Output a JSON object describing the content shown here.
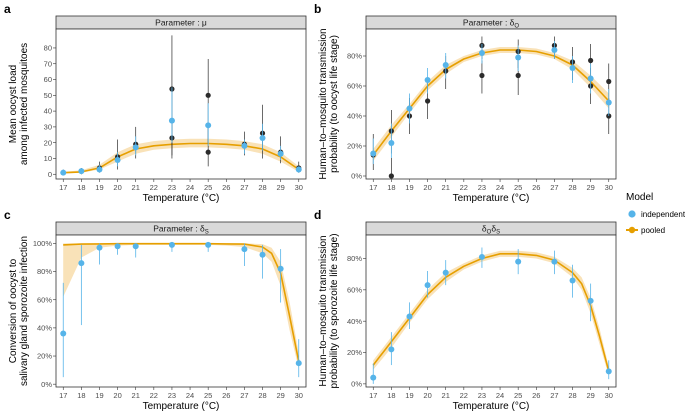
{
  "figure": {
    "legend": {
      "title": "Model",
      "items": [
        {
          "label": "independent",
          "color": "#56B4E9"
        },
        {
          "label": "pooled",
          "color": "#E69F00"
        }
      ]
    }
  },
  "colors": {
    "independent": "#56B4E9",
    "pooled": "#E69F00",
    "ribbon": "#F8DFB0",
    "raw": "#2b2b2b",
    "strip_bg": "#d9d9d9",
    "strip_border": "#333333"
  },
  "chart_data": [
    {
      "id": "a",
      "letter": "a",
      "type": "scatter",
      "strip": "Parameter : μ",
      "title": "Parameter : μ",
      "xlabel": "Temperature (°C)",
      "ylabel": [
        "Mean oocyst load",
        "among infected mosquitoes"
      ],
      "xlim": [
        16.6,
        30.4
      ],
      "ylim": [
        -3,
        92
      ],
      "xticks": [
        17,
        18,
        19,
        20,
        21,
        22,
        23,
        24,
        25,
        26,
        27,
        28,
        29,
        30
      ],
      "yticks": [
        0,
        10,
        20,
        30,
        40,
        50,
        60,
        70,
        80
      ],
      "ytick_labels": [
        "0",
        "10",
        "20",
        "30",
        "40",
        "50",
        "60",
        "70",
        "80"
      ],
      "curve": {
        "x": [
          17,
          18,
          19,
          20,
          21,
          22,
          23,
          24,
          25,
          26,
          27,
          28,
          29,
          30
        ],
        "y": [
          1,
          1.5,
          4,
          11,
          16,
          18,
          19,
          19.5,
          19.5,
          19,
          18,
          16,
          11,
          3
        ]
      },
      "ribbon": {
        "x": [
          17,
          18,
          19,
          20,
          21,
          22,
          23,
          24,
          25,
          26,
          27,
          28,
          29,
          30
        ],
        "lower": [
          0.5,
          1,
          3,
          8,
          13,
          15.5,
          16.5,
          17,
          17,
          16.5,
          15.5,
          13,
          8,
          1.5
        ],
        "upper": [
          1.5,
          2.5,
          6,
          14,
          19,
          21,
          22,
          22.5,
          22.5,
          22,
          21,
          19,
          14,
          5
        ]
      },
      "independent": [
        {
          "x": 17,
          "y": 1,
          "lo": 0,
          "hi": 2
        },
        {
          "x": 18,
          "y": 2,
          "lo": 1,
          "hi": 3
        },
        {
          "x": 19,
          "y": 3,
          "lo": 1,
          "hi": 6
        },
        {
          "x": 20,
          "y": 9,
          "lo": 5,
          "hi": 14
        },
        {
          "x": 21,
          "y": 17,
          "lo": 12,
          "hi": 24
        },
        {
          "x": 23,
          "y": 34,
          "lo": 20,
          "hi": 55
        },
        {
          "x": 25,
          "y": 31,
          "lo": 18,
          "hi": 45
        },
        {
          "x": 27,
          "y": 18,
          "lo": 13,
          "hi": 22
        },
        {
          "x": 28,
          "y": 23,
          "lo": 15,
          "hi": 32
        },
        {
          "x": 29,
          "y": 13,
          "lo": 9,
          "hi": 18
        },
        {
          "x": 30,
          "y": 3,
          "lo": 1,
          "hi": 5
        }
      ],
      "raw": [
        {
          "x": 17,
          "y": 1,
          "lo": 0,
          "hi": 3
        },
        {
          "x": 18,
          "y": 2,
          "lo": 0,
          "hi": 4
        },
        {
          "x": 19,
          "y": 4,
          "lo": 1,
          "hi": 8
        },
        {
          "x": 20,
          "y": 11,
          "lo": 3,
          "hi": 22
        },
        {
          "x": 21,
          "y": 19,
          "lo": 10,
          "hi": 30
        },
        {
          "x": 23,
          "y": 54,
          "lo": 12,
          "hi": 88
        },
        {
          "x": 23,
          "y": 23,
          "lo": 10,
          "hi": 35
        },
        {
          "x": 25,
          "y": 50,
          "lo": 20,
          "hi": 73
        },
        {
          "x": 25,
          "y": 14,
          "lo": 5,
          "hi": 30
        },
        {
          "x": 27,
          "y": 19,
          "lo": 12,
          "hi": 27
        },
        {
          "x": 28,
          "y": 26,
          "lo": 10,
          "hi": 44
        },
        {
          "x": 29,
          "y": 14,
          "lo": 7,
          "hi": 24
        },
        {
          "x": 30,
          "y": 4,
          "lo": 1,
          "hi": 8
        }
      ]
    },
    {
      "id": "b",
      "letter": "b",
      "type": "scatter",
      "strip": "Parameter : δ",
      "strip_sub": "O",
      "title": "Parameter : δO",
      "xlabel": "Temperature (°C)",
      "ylabel": [
        "Human–to–mosquito transmission",
        "probability (to oocyst life stage)"
      ],
      "xlim": [
        16.6,
        30.4
      ],
      "ylim": [
        -0.02,
        0.98
      ],
      "xticks": [
        17,
        18,
        19,
        20,
        21,
        22,
        23,
        24,
        25,
        26,
        27,
        28,
        29,
        30
      ],
      "yticks": [
        0,
        0.2,
        0.4,
        0.6,
        0.8
      ],
      "ytick_labels": [
        "0%",
        "20%",
        "40%",
        "60%",
        "80%"
      ],
      "curve": {
        "x": [
          17,
          18,
          19,
          20,
          21,
          22,
          23,
          24,
          25,
          26,
          27,
          28,
          29,
          30
        ],
        "y": [
          0.14,
          0.3,
          0.45,
          0.6,
          0.71,
          0.78,
          0.82,
          0.84,
          0.84,
          0.83,
          0.8,
          0.74,
          0.63,
          0.5
        ]
      },
      "ribbon": {
        "x": [
          17,
          18,
          19,
          20,
          21,
          22,
          23,
          24,
          25,
          26,
          27,
          28,
          29,
          30
        ],
        "lower": [
          0.1,
          0.26,
          0.42,
          0.57,
          0.68,
          0.76,
          0.8,
          0.82,
          0.82,
          0.81,
          0.78,
          0.71,
          0.59,
          0.45
        ],
        "upper": [
          0.18,
          0.34,
          0.48,
          0.63,
          0.74,
          0.8,
          0.84,
          0.86,
          0.86,
          0.85,
          0.82,
          0.77,
          0.67,
          0.55
        ]
      },
      "independent": [
        {
          "x": 17,
          "y": 0.15,
          "lo": 0.08,
          "hi": 0.25
        },
        {
          "x": 18,
          "y": 0.22,
          "lo": 0.12,
          "hi": 0.35
        },
        {
          "x": 19,
          "y": 0.45,
          "lo": 0.35,
          "hi": 0.55
        },
        {
          "x": 20,
          "y": 0.64,
          "lo": 0.55,
          "hi": 0.72
        },
        {
          "x": 21,
          "y": 0.74,
          "lo": 0.65,
          "hi": 0.82
        },
        {
          "x": 23,
          "y": 0.82,
          "lo": 0.75,
          "hi": 0.88
        },
        {
          "x": 25,
          "y": 0.79,
          "lo": 0.7,
          "hi": 0.87
        },
        {
          "x": 27,
          "y": 0.84,
          "lo": 0.78,
          "hi": 0.9
        },
        {
          "x": 28,
          "y": 0.72,
          "lo": 0.62,
          "hi": 0.8
        },
        {
          "x": 29,
          "y": 0.65,
          "lo": 0.55,
          "hi": 0.75
        },
        {
          "x": 30,
          "y": 0.49,
          "lo": 0.4,
          "hi": 0.58
        }
      ],
      "raw": [
        {
          "x": 17,
          "y": 0.14,
          "lo": 0.04,
          "hi": 0.28
        },
        {
          "x": 18,
          "y": 0.3,
          "lo": 0.15,
          "hi": 0.44
        },
        {
          "x": 18,
          "y": 0.0,
          "lo": 0.0,
          "hi": 0.12
        },
        {
          "x": 19,
          "y": 0.4,
          "lo": 0.28,
          "hi": 0.52
        },
        {
          "x": 20,
          "y": 0.5,
          "lo": 0.38,
          "hi": 0.62
        },
        {
          "x": 21,
          "y": 0.7,
          "lo": 0.58,
          "hi": 0.8
        },
        {
          "x": 23,
          "y": 0.87,
          "lo": 0.78,
          "hi": 0.93
        },
        {
          "x": 23,
          "y": 0.67,
          "lo": 0.55,
          "hi": 0.77
        },
        {
          "x": 25,
          "y": 0.83,
          "lo": 0.72,
          "hi": 0.91
        },
        {
          "x": 25,
          "y": 0.67,
          "lo": 0.54,
          "hi": 0.78
        },
        {
          "x": 27,
          "y": 0.87,
          "lo": 0.78,
          "hi": 0.93
        },
        {
          "x": 28,
          "y": 0.76,
          "lo": 0.64,
          "hi": 0.86
        },
        {
          "x": 29,
          "y": 0.77,
          "lo": 0.58,
          "hi": 0.88
        },
        {
          "x": 29,
          "y": 0.6,
          "lo": 0.48,
          "hi": 0.72
        },
        {
          "x": 30,
          "y": 0.63,
          "lo": 0.5,
          "hi": 0.75
        },
        {
          "x": 30,
          "y": 0.4,
          "lo": 0.28,
          "hi": 0.52
        }
      ]
    },
    {
      "id": "c",
      "letter": "c",
      "type": "scatter",
      "strip": "Parameter : δ",
      "strip_sub": "S",
      "title": "Parameter : δS",
      "xlabel": "Temperature (°C)",
      "ylabel": [
        "Conversion of oocyst to",
        "salivary gland sporozoite infection"
      ],
      "xlim": [
        16.6,
        30.4
      ],
      "ylim": [
        -0.02,
        1.06
      ],
      "xticks": [
        17,
        18,
        19,
        20,
        21,
        22,
        23,
        24,
        25,
        26,
        27,
        28,
        29,
        30
      ],
      "yticks": [
        0,
        0.2,
        0.4,
        0.6,
        0.8,
        1.0
      ],
      "ytick_labels": [
        "0%",
        "20%",
        "40%",
        "60%",
        "80%",
        "100%"
      ],
      "curve": {
        "x": [
          17,
          18,
          19,
          20,
          21,
          22,
          23,
          24,
          25,
          26,
          27,
          28,
          28.5,
          29,
          29.5,
          30
        ],
        "y": [
          0.99,
          0.995,
          0.997,
          0.998,
          0.998,
          0.998,
          0.998,
          0.998,
          0.998,
          0.997,
          0.995,
          0.975,
          0.93,
          0.79,
          0.48,
          0.16
        ]
      },
      "ribbon": {
        "x": [
          17,
          18,
          19,
          20,
          21,
          22,
          23,
          24,
          25,
          26,
          27,
          28,
          28.5,
          29,
          29.5,
          30
        ],
        "lower": [
          0.62,
          0.9,
          0.97,
          0.985,
          0.99,
          0.99,
          0.99,
          0.99,
          0.99,
          0.985,
          0.975,
          0.93,
          0.87,
          0.7,
          0.38,
          0.11
        ],
        "upper": [
          1.0,
          1.0,
          1.0,
          1.0,
          1.0,
          1.0,
          1.0,
          1.0,
          1.0,
          1.0,
          1.0,
          0.995,
          0.97,
          0.87,
          0.58,
          0.22
        ]
      },
      "independent": [
        {
          "x": 17,
          "y": 0.36,
          "lo": 0.05,
          "hi": 0.72
        },
        {
          "x": 18,
          "y": 0.86,
          "lo": 0.42,
          "hi": 0.99
        },
        {
          "x": 19,
          "y": 0.97,
          "lo": 0.85,
          "hi": 1.0
        },
        {
          "x": 20,
          "y": 0.98,
          "lo": 0.92,
          "hi": 1.0
        },
        {
          "x": 21,
          "y": 0.98,
          "lo": 0.9,
          "hi": 1.0
        },
        {
          "x": 23,
          "y": 0.99,
          "lo": 0.94,
          "hi": 1.0
        },
        {
          "x": 25,
          "y": 0.99,
          "lo": 0.94,
          "hi": 1.0
        },
        {
          "x": 27,
          "y": 0.96,
          "lo": 0.84,
          "hi": 1.0
        },
        {
          "x": 28,
          "y": 0.92,
          "lo": 0.75,
          "hi": 0.99
        },
        {
          "x": 29,
          "y": 0.82,
          "lo": 0.58,
          "hi": 0.96
        },
        {
          "x": 30,
          "y": 0.15,
          "lo": 0.05,
          "hi": 0.32
        }
      ],
      "raw": []
    },
    {
      "id": "d",
      "letter": "d",
      "type": "scatter",
      "strip": "δ",
      "strip_sub": "O",
      "strip_tail": "δ",
      "strip_tail_sub": "S",
      "title": "δOδS",
      "xlabel": "Temperature (°C)",
      "ylabel": [
        "Human–to–mosquito transmission",
        "probability (to sporozoite life stage)"
      ],
      "xlim": [
        16.6,
        30.4
      ],
      "ylim": [
        -0.02,
        0.95
      ],
      "xticks": [
        17,
        18,
        19,
        20,
        21,
        22,
        23,
        24,
        25,
        26,
        27,
        28,
        29,
        30
      ],
      "yticks": [
        0,
        0.2,
        0.4,
        0.6,
        0.8
      ],
      "ytick_labels": [
        "0%",
        "20%",
        "40%",
        "60%",
        "80%"
      ],
      "curve": {
        "x": [
          17,
          18,
          19,
          20,
          21,
          22,
          23,
          24,
          25,
          26,
          27,
          28,
          28.5,
          29,
          29.5,
          30
        ],
        "y": [
          0.12,
          0.27,
          0.42,
          0.57,
          0.68,
          0.75,
          0.8,
          0.83,
          0.83,
          0.82,
          0.79,
          0.71,
          0.64,
          0.5,
          0.3,
          0.08
        ]
      },
      "ribbon": {
        "x": [
          17,
          18,
          19,
          20,
          21,
          22,
          23,
          24,
          25,
          26,
          27,
          28,
          28.5,
          29,
          29.5,
          30
        ],
        "lower": [
          0.09,
          0.23,
          0.39,
          0.54,
          0.65,
          0.73,
          0.78,
          0.81,
          0.81,
          0.8,
          0.77,
          0.68,
          0.6,
          0.45,
          0.25,
          0.05
        ],
        "upper": [
          0.15,
          0.3,
          0.45,
          0.6,
          0.71,
          0.77,
          0.82,
          0.85,
          0.85,
          0.84,
          0.81,
          0.74,
          0.68,
          0.55,
          0.35,
          0.11
        ]
      },
      "independent": [
        {
          "x": 17,
          "y": 0.04,
          "lo": 0.0,
          "hi": 0.13
        },
        {
          "x": 18,
          "y": 0.22,
          "lo": 0.12,
          "hi": 0.33
        },
        {
          "x": 19,
          "y": 0.43,
          "lo": 0.35,
          "hi": 0.52
        },
        {
          "x": 20,
          "y": 0.63,
          "lo": 0.55,
          "hi": 0.72
        },
        {
          "x": 21,
          "y": 0.71,
          "lo": 0.63,
          "hi": 0.79
        },
        {
          "x": 23,
          "y": 0.81,
          "lo": 0.74,
          "hi": 0.87
        },
        {
          "x": 25,
          "y": 0.78,
          "lo": 0.7,
          "hi": 0.86
        },
        {
          "x": 27,
          "y": 0.78,
          "lo": 0.7,
          "hi": 0.85
        },
        {
          "x": 28,
          "y": 0.66,
          "lo": 0.55,
          "hi": 0.76
        },
        {
          "x": 29,
          "y": 0.53,
          "lo": 0.4,
          "hi": 0.64
        },
        {
          "x": 30,
          "y": 0.08,
          "lo": 0.03,
          "hi": 0.15
        }
      ],
      "raw": []
    }
  ]
}
